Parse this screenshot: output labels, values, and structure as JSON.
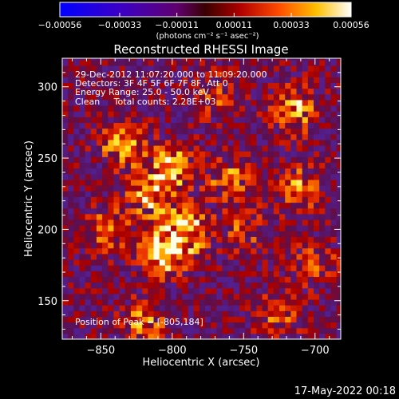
{
  "chart_data": {
    "type": "heatmap",
    "title": "Reconstructed RHESSI Image",
    "xlabel": "Heliocentric X (arcsec)",
    "ylabel": "Heliocentric Y (arcsec)",
    "xlim": [
      -877,
      -682
    ],
    "ylim": [
      123,
      320
    ],
    "xticks": [
      -850,
      -800,
      -750,
      -700
    ],
    "xtick_labels": [
      "−850",
      "−800",
      "−750",
      "−700"
    ],
    "yticks": [
      150,
      200,
      250,
      300
    ],
    "ytick_labels": [
      "150",
      "200",
      "250",
      "300"
    ],
    "colorbar": {
      "min": -0.00056,
      "max": 0.00056,
      "ticks": [
        -0.00056,
        -0.00033,
        -0.00011,
        0.00011,
        0.00033,
        0.00056
      ],
      "tick_labels": [
        "−0.00056",
        "−0.00033",
        "−0.00011",
        "0.00011",
        "0.00033",
        "0.00056"
      ],
      "unit_label": "(photons cm⁻² s⁻¹ asec⁻²)"
    },
    "sources": [
      {
        "x": -805,
        "y": 184,
        "amp": 1.0
      },
      {
        "x": -790,
        "y": 200,
        "amp": 0.8
      },
      {
        "x": -815,
        "y": 225,
        "amp": 0.8
      },
      {
        "x": -800,
        "y": 245,
        "amp": 0.75
      },
      {
        "x": -835,
        "y": 260,
        "amp": 0.65
      },
      {
        "x": -760,
        "y": 235,
        "amp": 0.55
      },
      {
        "x": -715,
        "y": 285,
        "amp": 0.75
      },
      {
        "x": -712,
        "y": 230,
        "amp": 0.6
      },
      {
        "x": -845,
        "y": 200,
        "amp": 0.5
      },
      {
        "x": -820,
        "y": 135,
        "amp": 0.55
      },
      {
        "x": -725,
        "y": 140,
        "amp": 0.5
      },
      {
        "x": -770,
        "y": 295,
        "amp": 0.5
      },
      {
        "x": -750,
        "y": 200,
        "amp": 0.4
      },
      {
        "x": -700,
        "y": 175,
        "amp": 0.45
      }
    ],
    "annotations": [
      "29-Dec-2012 11:07:20.000 to 11:09:20.000",
      "Detectors: 3F 4F 5F 6F 7F 8F, Att 0",
      "Energy Range: 25.0 - 50.0 keV",
      "Clean     Total counts: 2.28E+03"
    ],
    "peak_label": "Position of Peak = [-805,184]",
    "peak": {
      "x": -805,
      "y": 184
    }
  },
  "footer": {
    "timestamp": "17-May-2022 00:18"
  }
}
